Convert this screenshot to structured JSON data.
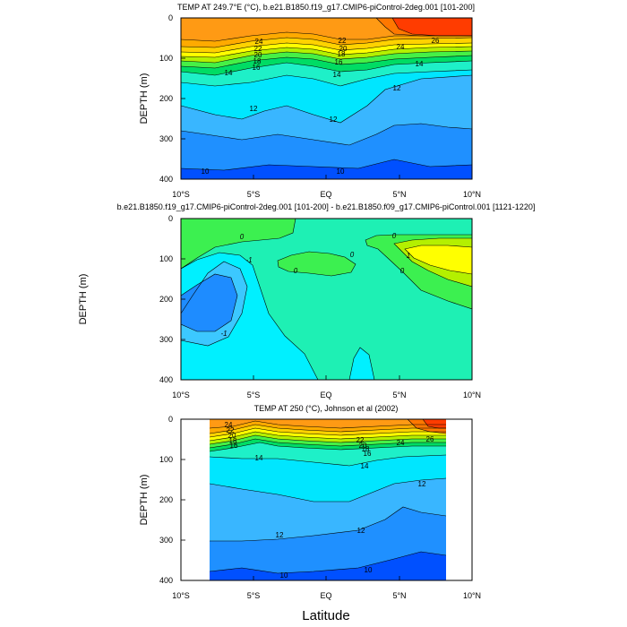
{
  "chart_data": [
    {
      "type": "heatmap",
      "title": "TEMP AT 249.7°E (°C), b.e21.B1850.f19_g17.CMIP6-piControl-2deg.001 [101-200]",
      "ylabel": "DEPTH (m)",
      "xticks": [
        "10°S",
        "5°S",
        "EQ",
        "5°N",
        "10°N"
      ],
      "yticks": [
        "0",
        "100",
        "200",
        "300",
        "400"
      ],
      "xlim": [
        -10,
        10
      ],
      "ylim": [
        400,
        0
      ],
      "contour_labels": [
        "26",
        "24",
        "24",
        "22",
        "22",
        "20",
        "20",
        "18",
        "18",
        "16",
        "16",
        "14",
        "14",
        "14",
        "12",
        "12",
        "12",
        "10",
        "10"
      ],
      "palette": [
        "#0050ff",
        "#1f90ff",
        "#39b6ff",
        "#00e6ff",
        "#1ef0c8",
        "#00dc64",
        "#46f046",
        "#b4f000",
        "#ffff00",
        "#ffd200",
        "#ffaa00",
        "#ff9a14",
        "#ff7800",
        "#ff3c00"
      ]
    },
    {
      "type": "heatmap",
      "title": "b.e21.B1850.f19_g17.CMIP6-piControl-2deg.001 [101-200] - b.e21.B1850.f09_g17.CMIP6-piControl.001 [1121-1220]",
      "ylabel": "DEPTH (m)",
      "xticks": [
        "10°S",
        "5°S",
        "EQ",
        "5°N",
        "10°N"
      ],
      "yticks": [
        "0",
        "100",
        "200",
        "300",
        "400"
      ],
      "xlim": [
        -10,
        10
      ],
      "ylim": [
        400,
        0
      ],
      "contour_labels": [
        "0",
        "0",
        "0",
        "0",
        "0",
        "-1",
        "-1",
        "1"
      ],
      "palette": [
        "#1e8cff",
        "#3cc8ff",
        "#00f0ff",
        "#1ef0b4",
        "#3cf050",
        "#b4f000",
        "#ffff00"
      ]
    },
    {
      "type": "heatmap",
      "title": "TEMP AT 250 (°C), Johnson et al (2002)",
      "xlabel": "Latitude",
      "ylabel": "DEPTH (m)",
      "xticks": [
        "10°S",
        "5°S",
        "EQ",
        "5°N",
        "10°N"
      ],
      "yticks": [
        "0",
        "100",
        "200",
        "300",
        "400"
      ],
      "xlim": [
        -10,
        10
      ],
      "ylim": [
        400,
        0
      ],
      "contour_labels": [
        "24",
        "22",
        "20",
        "18",
        "16",
        "22",
        "20",
        "18",
        "16",
        "24",
        "26",
        "14",
        "14",
        "12",
        "12",
        "12",
        "10",
        "10"
      ],
      "palette": [
        "#0050ff",
        "#1f90ff",
        "#39b6ff",
        "#00e6ff",
        "#1ef0c8",
        "#00dc64",
        "#46f046",
        "#b4f000",
        "#ffff00",
        "#ffd200",
        "#ffaa00",
        "#ff9a14",
        "#ff7800",
        "#ff3c00"
      ]
    }
  ]
}
